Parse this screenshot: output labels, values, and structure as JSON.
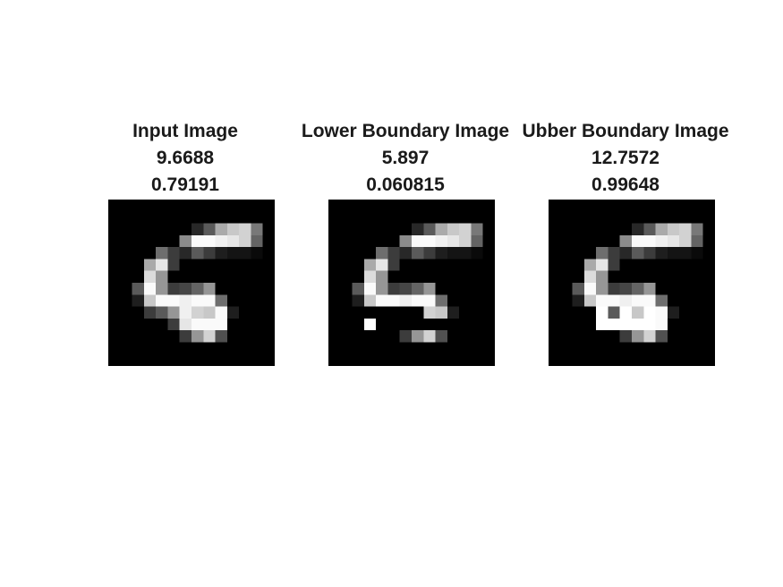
{
  "panels": [
    {
      "title": "Input Image",
      "value1": "9.6688",
      "value2": "0.79191",
      "icon": "digit-image-input"
    },
    {
      "title": "Lower Boundary Image",
      "value1": "5.897",
      "value2": "0.060815",
      "icon": "digit-image-lower"
    },
    {
      "title": "Ubber Boundary Image",
      "value1": "12.7572",
      "value2": "0.99648",
      "icon": "digit-image-upper"
    }
  ],
  "colors": {
    "background": "#ffffff",
    "image_background": "#000000",
    "text": "#1a1a1a"
  }
}
